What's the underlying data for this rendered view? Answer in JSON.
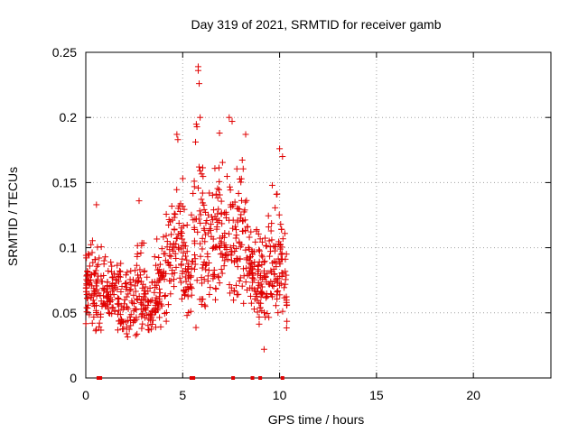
{
  "chart_data": {
    "type": "scatter",
    "title": "Day 319 of 2021, SRMTID for receiver gamb",
    "xlabel": "GPS time / hours",
    "ylabel": "SRMTID / TECUs",
    "xlim": [
      0,
      24
    ],
    "ylim": [
      0,
      0.25
    ],
    "xticks": [
      0,
      5,
      10,
      15,
      20
    ],
    "xtick_labels": [
      "0",
      "5",
      "10",
      "15",
      "20"
    ],
    "yticks": [
      0,
      0.05,
      0.1,
      0.15,
      0.2,
      0.25
    ],
    "ytick_labels": [
      "0",
      "0.05",
      "0.1",
      "0.15",
      "0.2",
      "0.25"
    ],
    "grid": true,
    "marker": "+",
    "color": "#e00000",
    "series": [
      {
        "name": "SRMTID",
        "envelope": [
          {
            "x": 0.0,
            "y_low": 0.04,
            "y_high": 0.116
          },
          {
            "x": 0.5,
            "y_low": 0.02,
            "y_high": 0.133
          },
          {
            "x": 1.0,
            "y_low": 0.035,
            "y_high": 0.105
          },
          {
            "x": 1.5,
            "y_low": 0.03,
            "y_high": 0.1
          },
          {
            "x": 2.0,
            "y_low": 0.02,
            "y_high": 0.105
          },
          {
            "x": 2.5,
            "y_low": 0.025,
            "y_high": 0.1
          },
          {
            "x": 2.8,
            "y_low": 0.025,
            "y_high": 0.137
          },
          {
            "x": 3.2,
            "y_low": 0.025,
            "y_high": 0.08
          },
          {
            "x": 3.8,
            "y_low": 0.03,
            "y_high": 0.125
          },
          {
            "x": 4.3,
            "y_low": 0.04,
            "y_high": 0.155
          },
          {
            "x": 4.7,
            "y_low": 0.05,
            "y_high": 0.188
          },
          {
            "x": 5.3,
            "y_low": 0.04,
            "y_high": 0.13
          },
          {
            "x": 5.7,
            "y_low": 0.03,
            "y_high": 0.238
          },
          {
            "x": 6.2,
            "y_low": 0.04,
            "y_high": 0.17
          },
          {
            "x": 6.8,
            "y_low": 0.04,
            "y_high": 0.2
          },
          {
            "x": 7.4,
            "y_low": 0.045,
            "y_high": 0.2
          },
          {
            "x": 7.8,
            "y_low": 0.05,
            "y_high": 0.185
          },
          {
            "x": 8.2,
            "y_low": 0.05,
            "y_high": 0.188
          },
          {
            "x": 8.7,
            "y_low": 0.04,
            "y_high": 0.14
          },
          {
            "x": 9.2,
            "y_low": 0.022,
            "y_high": 0.135
          },
          {
            "x": 9.7,
            "y_low": 0.04,
            "y_high": 0.165
          },
          {
            "x": 10.0,
            "y_low": 0.035,
            "y_high": 0.176
          },
          {
            "x": 10.4,
            "y_low": 0.035,
            "y_high": 0.095
          }
        ],
        "notable_points": [
          {
            "x": 5.8,
            "y": 0.239
          },
          {
            "x": 5.8,
            "y": 0.236
          },
          {
            "x": 5.85,
            "y": 0.226
          },
          {
            "x": 5.9,
            "y": 0.2
          },
          {
            "x": 7.4,
            "y": 0.2
          },
          {
            "x": 7.55,
            "y": 0.197
          },
          {
            "x": 4.7,
            "y": 0.187
          },
          {
            "x": 4.75,
            "y": 0.183
          },
          {
            "x": 6.9,
            "y": 0.188
          },
          {
            "x": 8.25,
            "y": 0.187
          },
          {
            "x": 10.0,
            "y": 0.176
          },
          {
            "x": 10.15,
            "y": 0.17
          },
          {
            "x": 0.55,
            "y": 0.133
          },
          {
            "x": 2.75,
            "y": 0.136
          },
          {
            "x": 9.2,
            "y": 0.022
          }
        ],
        "zero_points": [
          0.65,
          0.75,
          5.45,
          5.55,
          7.6,
          8.6,
          9.0,
          10.15
        ]
      }
    ]
  }
}
